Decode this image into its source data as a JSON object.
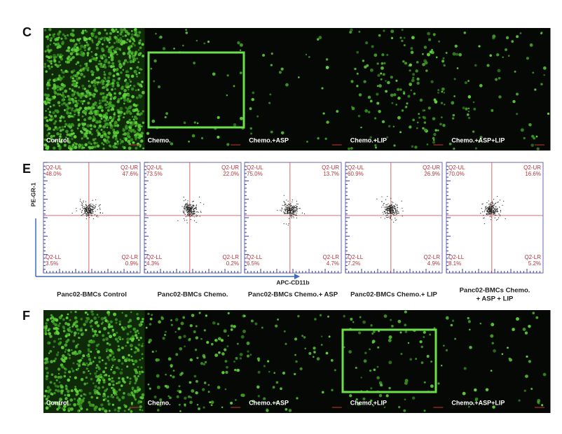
{
  "panels": [
    {
      "label": "C",
      "images": [
        "Control",
        "Chemo.",
        "Chemo.+ASP",
        "Chemo.+LIP",
        "Chemo.+ASP+LIP"
      ]
    },
    {
      "label": "E",
      "y_axis": "PE-GR-1",
      "x_axis": "APC-CD11b",
      "plots": [
        {
          "caption": [
            "Panc02-BMCs Control"
          ],
          "quadrants": [
            {
              "name": "Q2-UL",
              "value": "48.0%"
            },
            {
              "name": "Q2-UR",
              "value": "47.6%"
            },
            {
              "name": "Q2-LL",
              "value": "3.5%"
            },
            {
              "name": "Q2-LR",
              "value": "0.9%"
            }
          ]
        },
        {
          "caption": [
            "Panc02-BMCs Chemo."
          ],
          "quadrants": [
            {
              "name": "Q2-UL",
              "value": "73.5%"
            },
            {
              "name": "Q2-UR",
              "value": "22.0%"
            },
            {
              "name": "Q2-LL",
              "value": "4.3%"
            },
            {
              "name": "Q2-LR",
              "value": "0.2%"
            }
          ]
        },
        {
          "caption": [
            "Panc02-BMCs Chemo.+ ASP"
          ],
          "quadrants": [
            {
              "name": "Q2-UL",
              "value": "75.0%"
            },
            {
              "name": "Q2-UR",
              "value": "13.7%"
            },
            {
              "name": "Q2-LL",
              "value": "6.5%"
            },
            {
              "name": "Q2-LR",
              "value": "4.7%"
            }
          ]
        },
        {
          "caption": [
            "Panc02-BMCs Chemo.+ LIP"
          ],
          "quadrants": [
            {
              "name": "Q2-UL",
              "value": "60.9%"
            },
            {
              "name": "Q2-UR",
              "value": "26.9%"
            },
            {
              "name": "Q2-LL",
              "value": "7.2%"
            },
            {
              "name": "Q2-LR",
              "value": "4.9%"
            }
          ]
        },
        {
          "caption": [
            "Panc02-BMCs Chemo.",
            "+ ASP + LIP"
          ],
          "quadrants": [
            {
              "name": "Q2-UL",
              "value": "70.0%"
            },
            {
              "name": "Q2-UR",
              "value": "16.6%"
            },
            {
              "name": "Q2-LL",
              "value": "8.1%"
            },
            {
              "name": "Q2-LR",
              "value": "5.2%"
            }
          ]
        }
      ]
    },
    {
      "label": "F",
      "images": [
        "Control",
        "Chemo.",
        "Chemo.+ASP",
        "Chemo.+LIP",
        "Chemo.+ASP+LIP"
      ]
    }
  ]
}
